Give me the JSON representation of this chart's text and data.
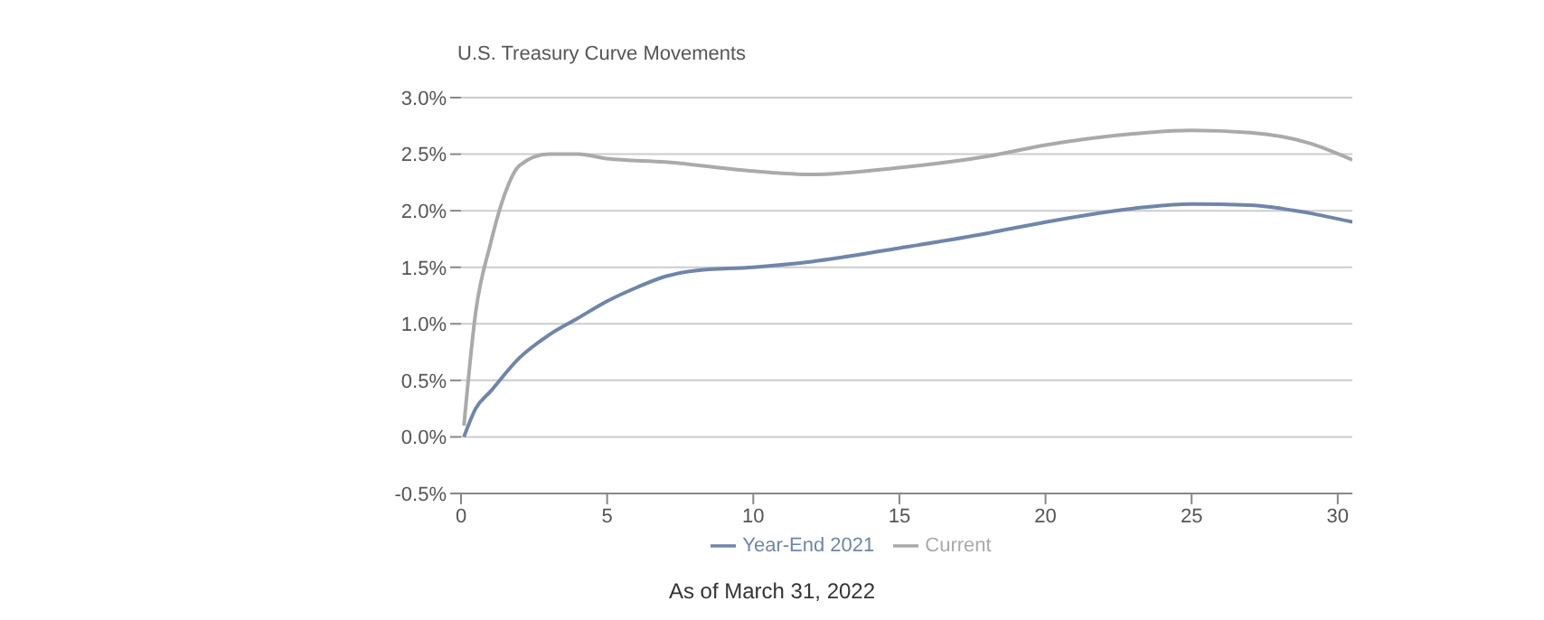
{
  "chart_data": {
    "type": "line",
    "title": "U.S. Treasury Curve Movements",
    "xlim": [
      0,
      30.5
    ],
    "xticks": [
      0,
      5,
      10,
      15,
      20,
      25,
      30
    ],
    "ylim": [
      -0.5,
      3.0
    ],
    "yticks": [
      {
        "value": -0.5,
        "label": "-0.5%"
      },
      {
        "value": 0,
        "label": "0.0%"
      },
      {
        "value": 0.5,
        "label": "0.5%"
      },
      {
        "value": 1.0,
        "label": "1.0%"
      },
      {
        "value": 1.5,
        "label": "1.5%"
      },
      {
        "value": 2.0,
        "label": "2.0%"
      },
      {
        "value": 2.5,
        "label": "2.5%"
      },
      {
        "value": 3.0,
        "label": "3.0%"
      }
    ],
    "grid": "y",
    "legend": "bottom",
    "series": [
      {
        "name": "Year-End 2021",
        "color": "#6f86aa",
        "x": [
          0.1,
          0.5,
          1,
          2,
          3,
          4,
          5,
          6,
          7,
          8,
          10,
          12,
          15,
          18,
          20,
          23,
          25,
          27,
          29,
          30.5
        ],
        "values": [
          0,
          0.25,
          0.4,
          0.7,
          0.9,
          1.05,
          1.2,
          1.32,
          1.42,
          1.47,
          1.5,
          1.55,
          1.67,
          1.8,
          1.9,
          2.02,
          2.06,
          2.05,
          1.98,
          1.9
        ]
      },
      {
        "name": "Current",
        "color": "#aaaaaa",
        "x": [
          0.1,
          0.5,
          1,
          1.5,
          2,
          3,
          4,
          5,
          7,
          10,
          12,
          15,
          18,
          20,
          23,
          25,
          27,
          29,
          30.5
        ],
        "values": [
          0.1,
          1.1,
          1.7,
          2.15,
          2.4,
          2.5,
          2.5,
          2.46,
          2.43,
          2.35,
          2.32,
          2.38,
          2.48,
          2.58,
          2.68,
          2.71,
          2.69,
          2.6,
          2.45
        ]
      }
    ],
    "annotations": [
      "As of March 31, 2022"
    ]
  }
}
